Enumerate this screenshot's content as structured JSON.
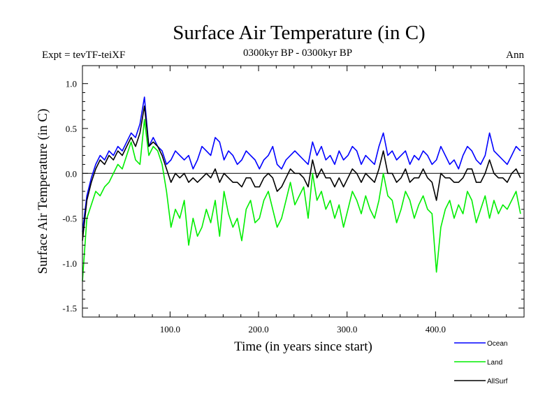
{
  "chart_data": {
    "type": "line",
    "title": "Surface Air Temperature (in C)",
    "subtitle_left": "Expt = tevTF-teiXF",
    "subtitle_center": "0300kyr BP - 0300kyr BP",
    "subtitle_right": "Ann",
    "xlabel": "Time (in years since start)",
    "ylabel": "Surface Air Temperature (in C)",
    "xlim": [
      1,
      500
    ],
    "ylim": [
      -1.6,
      1.2
    ],
    "x_ticks": [
      100,
      200,
      300,
      400
    ],
    "x_tick_labels": [
      "100.0",
      "200.0",
      "300.0",
      "400.0"
    ],
    "y_ticks": [
      1.0,
      0.5,
      0.0,
      -0.5,
      -1.0,
      -1.5
    ],
    "y_tick_labels": [
      "1.0",
      "0.5",
      "0.0",
      "-0.5",
      "-1.0",
      "-1.5"
    ],
    "zero_line": true,
    "x_step": 5,
    "series": [
      {
        "name": "Ocean",
        "color": "#0000ff",
        "x_start": 1,
        "values": [
          -0.65,
          -0.25,
          -0.05,
          0.1,
          0.2,
          0.15,
          0.25,
          0.2,
          0.3,
          0.25,
          0.35,
          0.45,
          0.4,
          0.55,
          0.85,
          0.3,
          0.4,
          0.3,
          0.25,
          0.1,
          0.15,
          0.25,
          0.2,
          0.15,
          0.2,
          0.05,
          0.15,
          0.3,
          0.25,
          0.2,
          0.4,
          0.35,
          0.15,
          0.25,
          0.2,
          0.1,
          0.15,
          0.25,
          0.2,
          0.15,
          0.05,
          0.15,
          0.2,
          0.3,
          0.1,
          0.05,
          0.15,
          0.2,
          0.25,
          0.2,
          0.15,
          0.1,
          0.35,
          0.2,
          0.3,
          0.15,
          0.2,
          0.1,
          0.25,
          0.15,
          0.2,
          0.3,
          0.25,
          0.1,
          0.2,
          0.15,
          0.1,
          0.3,
          0.45,
          0.2,
          0.25,
          0.15,
          0.2,
          0.25,
          0.1,
          0.2,
          0.15,
          0.25,
          0.2,
          0.1,
          0.15,
          0.3,
          0.2,
          0.1,
          0.15,
          0.05,
          0.2,
          0.3,
          0.25,
          0.15,
          0.1,
          0.2,
          0.45,
          0.25,
          0.2,
          0.15,
          0.1,
          0.2,
          0.3,
          0.25
        ]
      },
      {
        "name": "Land",
        "color": "#00ee00",
        "x_start": 1,
        "values": [
          -1.2,
          -0.5,
          -0.35,
          -0.2,
          -0.25,
          -0.15,
          -0.1,
          0.0,
          0.1,
          0.05,
          0.2,
          0.35,
          0.15,
          0.1,
          0.6,
          0.2,
          0.3,
          0.25,
          0.1,
          -0.2,
          -0.6,
          -0.4,
          -0.5,
          -0.3,
          -0.8,
          -0.5,
          -0.7,
          -0.6,
          -0.4,
          -0.55,
          -0.3,
          -0.7,
          -0.2,
          -0.45,
          -0.6,
          -0.5,
          -0.75,
          -0.4,
          -0.3,
          -0.55,
          -0.5,
          -0.3,
          -0.2,
          -0.4,
          -0.6,
          -0.5,
          -0.3,
          -0.1,
          -0.35,
          -0.25,
          -0.15,
          -0.5,
          0.0,
          -0.3,
          -0.2,
          -0.4,
          -0.3,
          -0.5,
          -0.35,
          -0.6,
          -0.4,
          -0.2,
          -0.3,
          -0.45,
          -0.25,
          -0.4,
          -0.5,
          -0.3,
          0.0,
          -0.25,
          -0.3,
          -0.55,
          -0.4,
          -0.2,
          -0.3,
          -0.5,
          -0.35,
          -0.25,
          -0.4,
          -0.45,
          -1.1,
          -0.6,
          -0.4,
          -0.3,
          -0.5,
          -0.35,
          -0.45,
          -0.2,
          -0.3,
          -0.55,
          -0.4,
          -0.25,
          -0.5,
          -0.3,
          -0.45,
          -0.35,
          -0.4,
          -0.3,
          -0.2,
          -0.45
        ]
      },
      {
        "name": "AllSurf",
        "color": "#000000",
        "x_start": 1,
        "values": [
          -0.75,
          -0.3,
          -0.1,
          0.05,
          0.15,
          0.1,
          0.2,
          0.15,
          0.25,
          0.2,
          0.3,
          0.4,
          0.3,
          0.45,
          0.75,
          0.3,
          0.35,
          0.3,
          0.2,
          0.05,
          -0.1,
          0.0,
          -0.05,
          0.0,
          -0.1,
          -0.05,
          -0.1,
          -0.05,
          0.0,
          -0.05,
          0.05,
          -0.1,
          0.0,
          -0.05,
          -0.1,
          -0.1,
          -0.15,
          -0.05,
          -0.05,
          -0.15,
          -0.15,
          -0.05,
          0.0,
          -0.05,
          -0.2,
          -0.15,
          -0.05,
          0.05,
          0.0,
          0.0,
          -0.05,
          -0.15,
          0.15,
          -0.05,
          0.05,
          -0.05,
          -0.05,
          -0.15,
          -0.05,
          -0.15,
          -0.05,
          0.05,
          0.0,
          -0.1,
          0.0,
          -0.05,
          -0.1,
          0.05,
          0.25,
          0.0,
          0.0,
          -0.1,
          -0.05,
          0.05,
          -0.1,
          -0.05,
          -0.05,
          0.05,
          -0.05,
          -0.1,
          -0.3,
          0.0,
          -0.05,
          -0.05,
          -0.1,
          -0.1,
          -0.05,
          0.05,
          0.05,
          -0.1,
          -0.1,
          0.0,
          0.15,
          0.0,
          -0.05,
          -0.05,
          -0.1,
          0.0,
          0.05,
          -0.05
        ]
      }
    ],
    "legend": [
      {
        "label": "Ocean",
        "color": "#0000ff"
      },
      {
        "label": "Land",
        "color": "#00ee00"
      },
      {
        "label": "AllSurf",
        "color": "#000000"
      }
    ],
    "legend_position": "bottom-right"
  }
}
